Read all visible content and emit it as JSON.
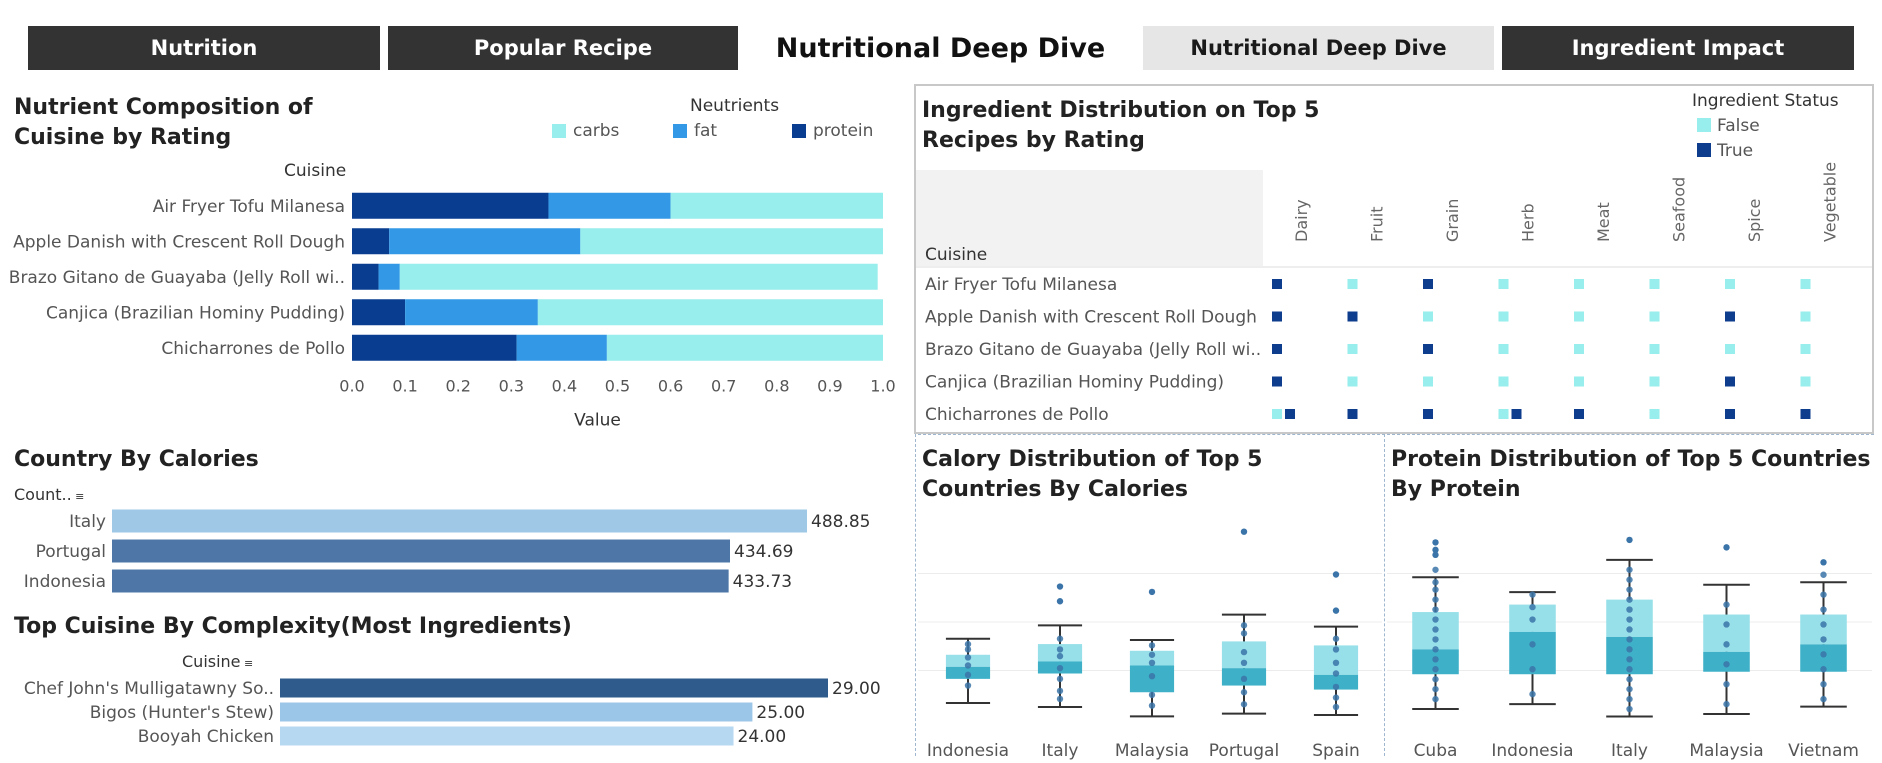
{
  "nav": {
    "tab1": "Nutrition",
    "tab2": "Popular Recipe",
    "title": "Nutritional Deep Dive",
    "tab3": "Nutritional Deep Dive",
    "tab4": "Ingredient Impact"
  },
  "colors": {
    "carbs": "#97eeec",
    "fat": "#3399e6",
    "protein": "#083d8f",
    "ing_false": "#97eeec",
    "ing_true": "#0e3d8d"
  },
  "chart_data": [
    {
      "id": "nutrient",
      "type": "bar",
      "orientation": "horizontal",
      "stacked": true,
      "title": "Nutrient Composition of Cuisine by Rating",
      "legend_title": "Neutrients",
      "ylabel": "Cuisine",
      "xlabel": "Value",
      "xlim": [
        0,
        1
      ],
      "x_ticks": [
        "0.0",
        "0.1",
        "0.2",
        "0.3",
        "0.4",
        "0.5",
        "0.6",
        "0.7",
        "0.8",
        "0.9",
        "1.0"
      ],
      "categories": [
        "Air Fryer Tofu Milanesa",
        "Apple Danish with Crescent Roll Dough",
        "Brazo Gitano de Guayaba (Jelly Roll wi..",
        "Canjica (Brazilian Hominy Pudding)",
        "Chicharrones de Pollo"
      ],
      "series": [
        {
          "name": "protein",
          "values": [
            0.37,
            0.07,
            0.05,
            0.1,
            0.31
          ]
        },
        {
          "name": "fat",
          "values": [
            0.23,
            0.36,
            0.04,
            0.25,
            0.17
          ]
        },
        {
          "name": "carbs",
          "values": [
            0.4,
            0.57,
            0.9,
            0.65,
            0.52
          ]
        }
      ]
    },
    {
      "id": "country_calories",
      "type": "bar",
      "orientation": "horizontal",
      "title": "Country By Calories",
      "ylabel": "Count..",
      "categories": [
        "Italy",
        "Portugal",
        "Indonesia"
      ],
      "values": [
        488.85,
        434.69,
        433.73
      ],
      "labels": [
        "488.85",
        "434.69",
        "433.73"
      ],
      "bar_colors": [
        "#9fc8e7",
        "#4e77a8",
        "#4e77a8"
      ]
    },
    {
      "id": "complexity",
      "type": "bar",
      "orientation": "horizontal",
      "title": "Top Cuisine By Complexity(Most Ingredients)",
      "ylabel": "Cuisine",
      "categories": [
        "Chef John's Mulligatawny So..",
        "Bigos (Hunter's Stew)",
        "Booyah Chicken"
      ],
      "values": [
        29,
        25,
        24
      ],
      "labels": [
        "29.00",
        "25.00",
        "24.00"
      ],
      "bar_colors": [
        "#2e5b8c",
        "#9cc6e7",
        "#b7d8f1"
      ]
    },
    {
      "id": "ingredients",
      "type": "heatmap",
      "title": "Ingredient Distribution on Top 5 Recipes by Rating",
      "legend_title": "Ingredient Status",
      "legend": [
        "False",
        "True"
      ],
      "row_header": "Cuisine",
      "columns": [
        "Dairy",
        "Fruit",
        "Grain",
        "Herb",
        "Meat",
        "Seafood",
        "Spice",
        "Vegetable"
      ],
      "rows": [
        "Air Fryer Tofu Milanesa",
        "Apple Danish with Crescent Roll Dough",
        "Brazo Gitano de Guayaba (Jelly Roll wi..",
        "Canjica (Brazilian Hominy Pudding)",
        "Chicharrones de Pollo"
      ],
      "values": [
        [
          [
            "True"
          ],
          [
            "False"
          ],
          [
            "True"
          ],
          [
            "False"
          ],
          [
            "False"
          ],
          [
            "False"
          ],
          [
            "False"
          ],
          [
            "False"
          ]
        ],
        [
          [
            "True"
          ],
          [
            "True"
          ],
          [
            "False"
          ],
          [
            "False"
          ],
          [
            "False"
          ],
          [
            "False"
          ],
          [
            "True"
          ],
          [
            "False"
          ]
        ],
        [
          [
            "True"
          ],
          [
            "False"
          ],
          [
            "True"
          ],
          [
            "False"
          ],
          [
            "False"
          ],
          [
            "False"
          ],
          [
            "False"
          ],
          [
            "False"
          ]
        ],
        [
          [
            "True"
          ],
          [
            "False"
          ],
          [
            "False"
          ],
          [
            "False"
          ],
          [
            "False"
          ],
          [
            "False"
          ],
          [
            "True"
          ],
          [
            "False"
          ]
        ],
        [
          [
            "False",
            "True"
          ],
          [
            "True"
          ],
          [
            "True"
          ],
          [
            "False",
            "True"
          ],
          [
            "True"
          ],
          [
            "False"
          ],
          [
            "True"
          ],
          [
            "True"
          ]
        ]
      ]
    },
    {
      "id": "calory_box",
      "type": "box",
      "title": "Calory Distribution of Top 5 Countries By Calories",
      "categories": [
        "Indonesia",
        "Italy",
        "Malaysia",
        "Portugal",
        "Spain"
      ],
      "ylim": [
        0,
        1450
      ],
      "boxes": [
        {
          "min": 120,
          "q1": 300,
          "median": 390,
          "q3": 480,
          "max": 600
        },
        {
          "min": 90,
          "q1": 340,
          "median": 430,
          "q3": 560,
          "max": 700
        },
        {
          "min": 20,
          "q1": 200,
          "median": 400,
          "q3": 510,
          "max": 590
        },
        {
          "min": 40,
          "q1": 250,
          "median": 380,
          "q3": 580,
          "max": 780
        },
        {
          "min": 30,
          "q1": 220,
          "median": 330,
          "q3": 550,
          "max": 690
        }
      ],
      "outliers": [
        [],
        [
          880,
          990
        ],
        [
          950
        ],
        [
          1400
        ],
        [
          810,
          1080
        ]
      ],
      "points": [
        [
          250,
          330,
          400,
          460,
          520,
          560
        ],
        [
          150,
          210,
          300,
          380,
          470,
          520,
          600
        ],
        [
          100,
          180,
          320,
          420,
          480,
          550
        ],
        [
          110,
          200,
          300,
          420,
          500,
          640,
          700
        ],
        [
          90,
          160,
          240,
          340,
          420,
          520,
          600
        ]
      ]
    },
    {
      "id": "protein_box",
      "type": "box",
      "title": "Protein Distribution of Top 5 Countries By Protein",
      "categories": [
        "Cuba",
        "Indonesia",
        "Italy",
        "Malaysia",
        "Vietnam"
      ],
      "ylim": [
        0,
        78
      ],
      "boxes": [
        {
          "min": 4,
          "q1": 18,
          "median": 28,
          "q3": 43,
          "max": 57
        },
        {
          "min": 6,
          "q1": 18,
          "median": 35,
          "q3": 46,
          "max": 51
        },
        {
          "min": 1,
          "q1": 18,
          "median": 33,
          "q3": 48,
          "max": 64
        },
        {
          "min": 2,
          "q1": 19,
          "median": 27,
          "q3": 42,
          "max": 54
        },
        {
          "min": 5,
          "q1": 19,
          "median": 30,
          "q3": 42,
          "max": 55
        }
      ],
      "outliers": [
        [
          66,
          68,
          71
        ],
        [],
        [
          72
        ],
        [
          69
        ],
        [
          63
        ]
      ],
      "points": [
        [
          8,
          12,
          16,
          20,
          24,
          28,
          32,
          36,
          40,
          44,
          48,
          52,
          55,
          60
        ],
        [
          10,
          20,
          30,
          40,
          45,
          50
        ],
        [
          4,
          8,
          12,
          16,
          20,
          24,
          28,
          32,
          36,
          40,
          44,
          48,
          52,
          56,
          60
        ],
        [
          6,
          14,
          22,
          30,
          38,
          46
        ],
        [
          8,
          14,
          20,
          26,
          32,
          38,
          44,
          50,
          58
        ]
      ]
    }
  ]
}
